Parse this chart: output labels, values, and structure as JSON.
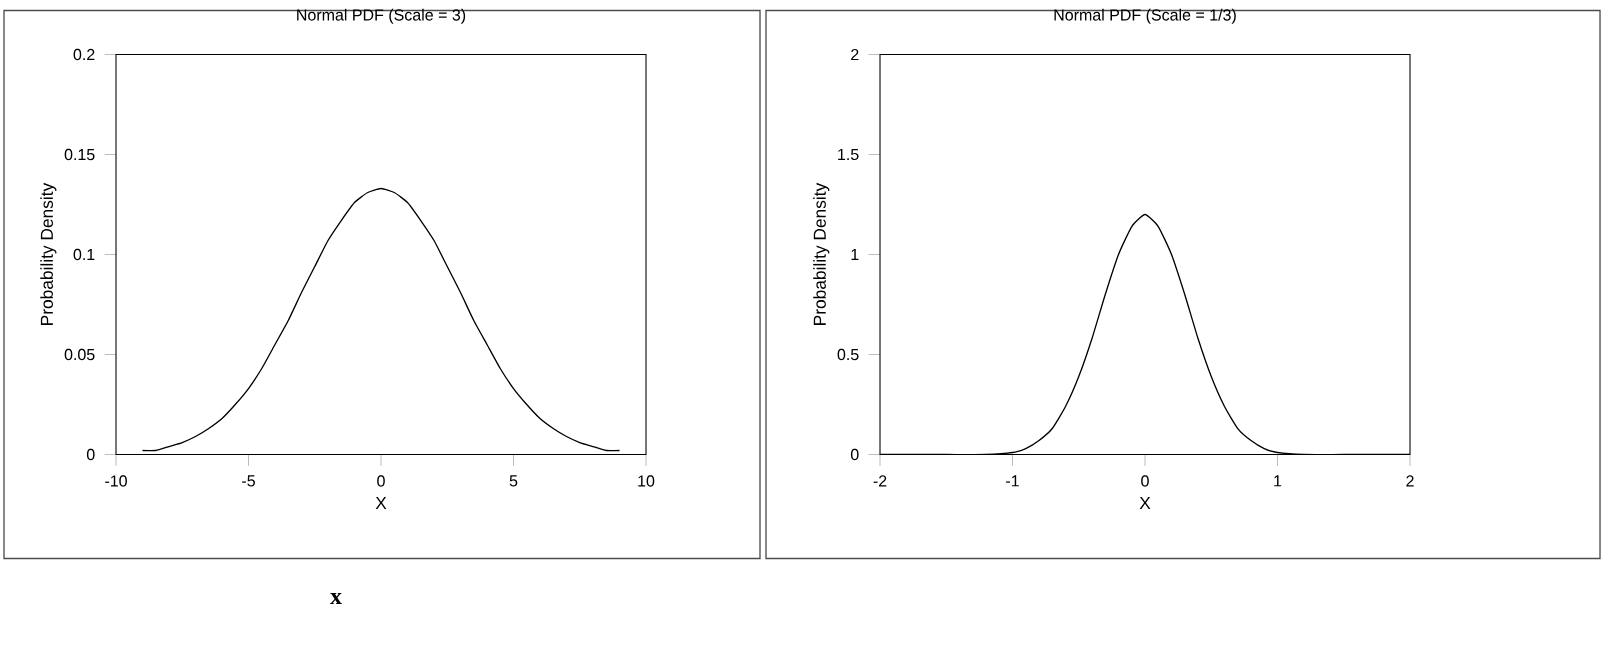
{
  "chart_data": [
    {
      "type": "line",
      "title": "Normal PDF (Scale = 3)",
      "xlabel": "X",
      "ylabel": "Probability Density",
      "x": [
        -9,
        -8.5,
        -8,
        -7.5,
        -7,
        -6.5,
        -6,
        -5.5,
        -5,
        -4.5,
        -4,
        -3.5,
        -3,
        -2.5,
        -2,
        -1.5,
        -1,
        -0.5,
        0,
        0.5,
        1,
        1.5,
        2,
        2.5,
        3,
        3.5,
        4,
        4.5,
        5,
        5.5,
        6,
        6.5,
        7,
        7.5,
        8,
        8.5,
        9
      ],
      "series": [
        {
          "color": "#000000",
          "values": [
            0.002,
            0.002,
            0.004,
            0.006,
            0.009,
            0.013,
            0.018,
            0.025,
            0.033,
            0.043,
            0.055,
            0.067,
            0.081,
            0.094,
            0.107,
            0.117,
            0.126,
            0.131,
            0.133,
            0.131,
            0.126,
            0.117,
            0.107,
            0.094,
            0.081,
            0.067,
            0.055,
            0.043,
            0.033,
            0.025,
            0.018,
            0.013,
            0.009,
            0.006,
            0.004,
            0.002,
            0.002
          ]
        }
      ],
      "xlim": [
        -10,
        10
      ],
      "xticks": [
        -10,
        -5,
        0,
        5,
        10
      ],
      "ylim": [
        0,
        0.2
      ],
      "yticks": [
        0,
        0.05,
        0.1,
        0.15,
        0.2
      ],
      "annotations": [
        "x"
      ]
    },
    {
      "type": "line",
      "title": "Normal PDF (Scale = 1/3)",
      "xlabel": "X",
      "ylabel": "Probability Density",
      "x": [
        -2,
        -1.5,
        -1.2,
        -1,
        -0.9,
        -0.8,
        -0.7,
        -0.6,
        -0.5,
        -0.4,
        -0.3,
        -0.2,
        -0.1,
        0,
        0.1,
        0.2,
        0.3,
        0.4,
        0.5,
        0.6,
        0.7,
        0.8,
        0.9,
        1,
        1.2,
        1.5,
        2
      ],
      "series": [
        {
          "color": "#000000",
          "values": [
            0,
            0,
            0,
            0.01,
            0.03,
            0.07,
            0.13,
            0.24,
            0.39,
            0.58,
            0.8,
            1.0,
            1.14,
            1.2,
            1.14,
            1.0,
            0.8,
            0.58,
            0.39,
            0.24,
            0.13,
            0.07,
            0.03,
            0.01,
            0,
            0,
            0
          ]
        }
      ],
      "xlim": [
        -2,
        2
      ],
      "xticks": [
        -2,
        -1,
        0,
        1,
        2
      ],
      "ylim": [
        0,
        2
      ],
      "yticks": [
        0,
        0.5,
        1,
        1.5,
        2
      ]
    }
  ]
}
